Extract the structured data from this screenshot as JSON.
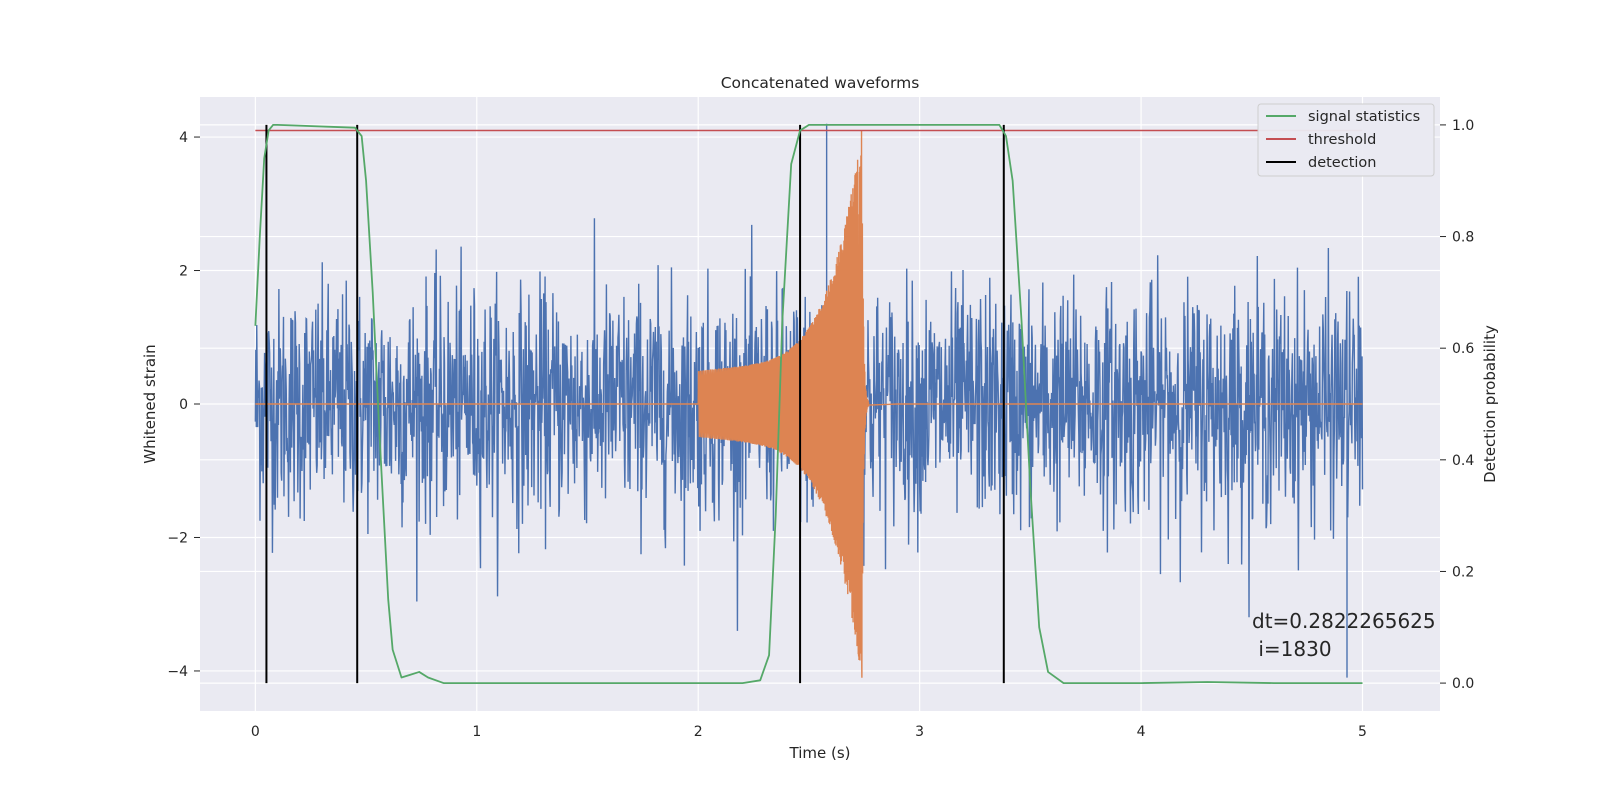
{
  "chart_data": {
    "type": "line",
    "title": "Concatenated waveforms",
    "xlabel": "Time (s)",
    "ylabel_left": "Whitened strain",
    "ylabel_right": "Detection probability",
    "xlim": [
      -0.25,
      5.35
    ],
    "ylim_left": [
      -4.6,
      4.6
    ],
    "ylim_right": [
      -0.05,
      1.05
    ],
    "xticks": [
      0,
      1,
      2,
      3,
      4,
      5
    ],
    "yticks_left": [
      -4,
      -2,
      0,
      2,
      4
    ],
    "yticks_right": [
      0.0,
      0.2,
      0.4,
      0.6,
      0.8,
      1.0
    ],
    "xtick_labels": [
      "0",
      "1",
      "2",
      "3",
      "4",
      "5"
    ],
    "ytick_labels_left": [
      "−4",
      "−2",
      "0",
      "2",
      "4"
    ],
    "ytick_labels_right": [
      "0.0",
      "0.2",
      "0.4",
      "0.6",
      "0.8",
      "1.0"
    ],
    "grid": true,
    "legend_position": "top-right",
    "series": [
      {
        "name": "signal statistics",
        "axis": "right",
        "color": "#55a868",
        "x": [
          0.0,
          0.02,
          0.04,
          0.06,
          0.08,
          0.1,
          0.45,
          0.48,
          0.5,
          0.53,
          0.56,
          0.6,
          0.62,
          0.66,
          0.7,
          0.74,
          0.78,
          0.85,
          1.5,
          2.0,
          2.2,
          2.28,
          2.32,
          2.35,
          2.38,
          2.42,
          2.46,
          2.5,
          3.36,
          3.39,
          3.42,
          3.46,
          3.5,
          3.54,
          3.58,
          3.65,
          4.0,
          4.3,
          4.6,
          5.0
        ],
        "y": [
          0.64,
          0.8,
          0.94,
          0.99,
          1.0,
          1.0,
          0.995,
          0.98,
          0.9,
          0.7,
          0.45,
          0.15,
          0.06,
          0.01,
          0.015,
          0.02,
          0.01,
          0.0,
          0.0,
          0.0,
          0.0,
          0.005,
          0.05,
          0.3,
          0.65,
          0.93,
          0.99,
          1.0,
          1.0,
          0.98,
          0.9,
          0.65,
          0.35,
          0.1,
          0.02,
          0.0,
          0.0,
          0.002,
          0.0,
          0.0
        ]
      },
      {
        "name": "threshold",
        "axis": "right",
        "color": "#c44e52",
        "x": [
          0.0,
          5.0
        ],
        "y": [
          0.99,
          0.99
        ]
      },
      {
        "name": "detection",
        "axis": "right",
        "color": "#000000",
        "type": "vlines",
        "x": [
          0.05,
          0.46,
          2.46,
          3.38
        ],
        "ymin": 0.0,
        "ymax": 1.0
      },
      {
        "name": "",
        "axis": "left",
        "color": "#4c72b0",
        "type": "noise",
        "x_range": [
          0.0,
          5.0
        ],
        "std": 0.85,
        "peak": [
          -4.1,
          4.2
        ]
      },
      {
        "name": "",
        "axis": "left",
        "color": "#dd8452",
        "type": "chirp",
        "start": 2.0,
        "merger": 2.74,
        "end": 2.77,
        "amp_start": 0.5,
        "amp_peak": 3.9
      }
    ],
    "annotation": [
      "dt=0.2822265625",
      " i=1830"
    ]
  }
}
